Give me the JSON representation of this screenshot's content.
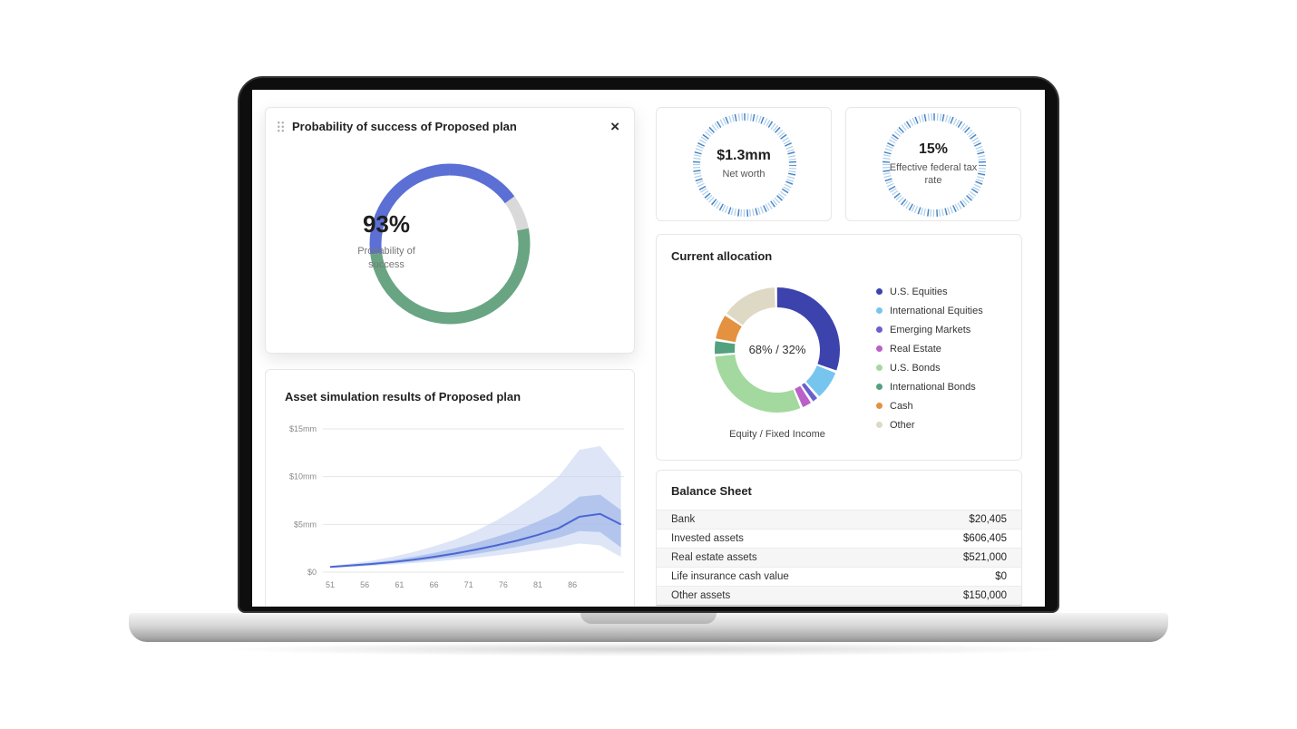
{
  "icons": {
    "close": "×"
  },
  "cards": {
    "probability": {
      "title": "Probability of success of Proposed plan",
      "value": "93%",
      "subtitle": "Probability of success"
    },
    "asset_simulation": {
      "title": "Asset simulation results of Proposed plan"
    },
    "net_worth": {
      "value": "$1.3mm",
      "label": "Net worth"
    },
    "tax": {
      "value": "15%",
      "label": "Effective federal tax rate"
    },
    "allocation": {
      "title": "Current allocation",
      "center_value": "68% / 32%",
      "caption": "Equity / Fixed Income",
      "legend": [
        {
          "label": "U.S. Equities",
          "color": "#3d43ad"
        },
        {
          "label": "International Equities",
          "color": "#76c5ee"
        },
        {
          "label": "Emerging Markets",
          "color": "#6a5fd0"
        },
        {
          "label": "Real Estate",
          "color": "#bb5fc9"
        },
        {
          "label": "U.S. Bonds",
          "color": "#a3d89e"
        },
        {
          "label": "International Bonds",
          "color": "#53a17f"
        },
        {
          "label": "Cash",
          "color": "#e49140"
        },
        {
          "label": "Other",
          "color": "#ded9c4"
        }
      ]
    },
    "balance_sheet": {
      "title": "Balance Sheet",
      "rows": [
        {
          "label": "Bank",
          "value": "$20,405"
        },
        {
          "label": "Invested assets",
          "value": "$606,405"
        },
        {
          "label": "Real estate assets",
          "value": "$521,000"
        },
        {
          "label": "Life insurance cash value",
          "value": "$0"
        },
        {
          "label": "Other assets",
          "value": "$150,000"
        }
      ]
    }
  },
  "chart_data": [
    {
      "id": "probability-donut",
      "type": "donut",
      "center_label": "93%",
      "sub_label": "Probability of success",
      "segments": [
        {
          "label": "success (blue upper-right)",
          "value": 15,
          "color": "#5b6fd4"
        },
        {
          "label": "remainder",
          "value": 7,
          "color": "#d9d9d9"
        },
        {
          "label": "success (green)",
          "value": 51,
          "color": "#69a583"
        },
        {
          "label": "success (blue upper-left)",
          "value": 27,
          "color": "#5b6fd4"
        }
      ]
    },
    {
      "id": "net-worth-ring",
      "type": "ring",
      "center_label": "$1.3mm",
      "label": "Net worth",
      "color": "#3f80c2"
    },
    {
      "id": "tax-ring",
      "type": "ring",
      "center_label": "15%",
      "label": "Effective federal tax rate",
      "color": "#3f80c2"
    },
    {
      "id": "allocation-donut",
      "type": "donut",
      "center_label": "68% / 32%",
      "caption": "Equity / Fixed Income",
      "segments": [
        {
          "label": "U.S. Equities",
          "value": 31,
          "color": "#3d43ad"
        },
        {
          "label": "International Equities",
          "value": 8,
          "color": "#76c5ee"
        },
        {
          "label": "Emerging Markets",
          "value": 2,
          "color": "#6a5fd0"
        },
        {
          "label": "Real Estate",
          "value": 3,
          "color": "#bb5fc9"
        },
        {
          "label": "U.S. Bonds",
          "value": 30,
          "color": "#a3d89e"
        },
        {
          "label": "International Bonds",
          "value": 4,
          "color": "#53a17f"
        },
        {
          "label": "Cash",
          "value": 7,
          "color": "#e49140"
        },
        {
          "label": "Other",
          "value": 15,
          "color": "#ded9c4"
        }
      ]
    },
    {
      "id": "asset-fan",
      "type": "area",
      "title": "Asset simulation results of Proposed plan",
      "ylim": [
        0,
        15
      ],
      "y_ticks": [
        {
          "v": 15,
          "label": "$15mm"
        },
        {
          "v": 10,
          "label": "$10mm"
        },
        {
          "v": 5,
          "label": "$5mm"
        },
        {
          "v": 0,
          "label": "$0"
        }
      ],
      "x_ticks": [
        51,
        56,
        61,
        66,
        71,
        76,
        81,
        86
      ],
      "x": [
        51,
        54,
        57,
        60,
        63,
        66,
        69,
        72,
        75,
        78,
        81,
        84,
        87,
        90,
        93
      ],
      "series": [
        {
          "name": "median",
          "values": [
            0.55,
            0.7,
            0.85,
            1.05,
            1.3,
            1.6,
            1.95,
            2.35,
            2.8,
            3.3,
            3.9,
            4.6,
            5.8,
            6.1,
            5.0
          ]
        },
        {
          "name": "inner_band_high",
          "values": [
            0.6,
            0.8,
            1.0,
            1.25,
            1.6,
            2.0,
            2.5,
            3.05,
            3.7,
            4.4,
            5.3,
            6.3,
            7.9,
            8.1,
            6.5
          ]
        },
        {
          "name": "inner_band_low",
          "values": [
            0.5,
            0.62,
            0.75,
            0.92,
            1.1,
            1.35,
            1.6,
            1.9,
            2.25,
            2.65,
            3.1,
            3.6,
            4.3,
            4.2,
            2.6
          ]
        },
        {
          "name": "outer_band_high",
          "values": [
            0.65,
            0.9,
            1.2,
            1.6,
            2.1,
            2.7,
            3.4,
            4.3,
            5.4,
            6.7,
            8.2,
            10.0,
            12.8,
            13.2,
            10.5
          ]
        },
        {
          "name": "outer_band_low",
          "values": [
            0.45,
            0.55,
            0.65,
            0.8,
            0.95,
            1.1,
            1.3,
            1.5,
            1.75,
            2.0,
            2.3,
            2.6,
            3.0,
            2.8,
            1.6
          ]
        }
      ]
    }
  ]
}
